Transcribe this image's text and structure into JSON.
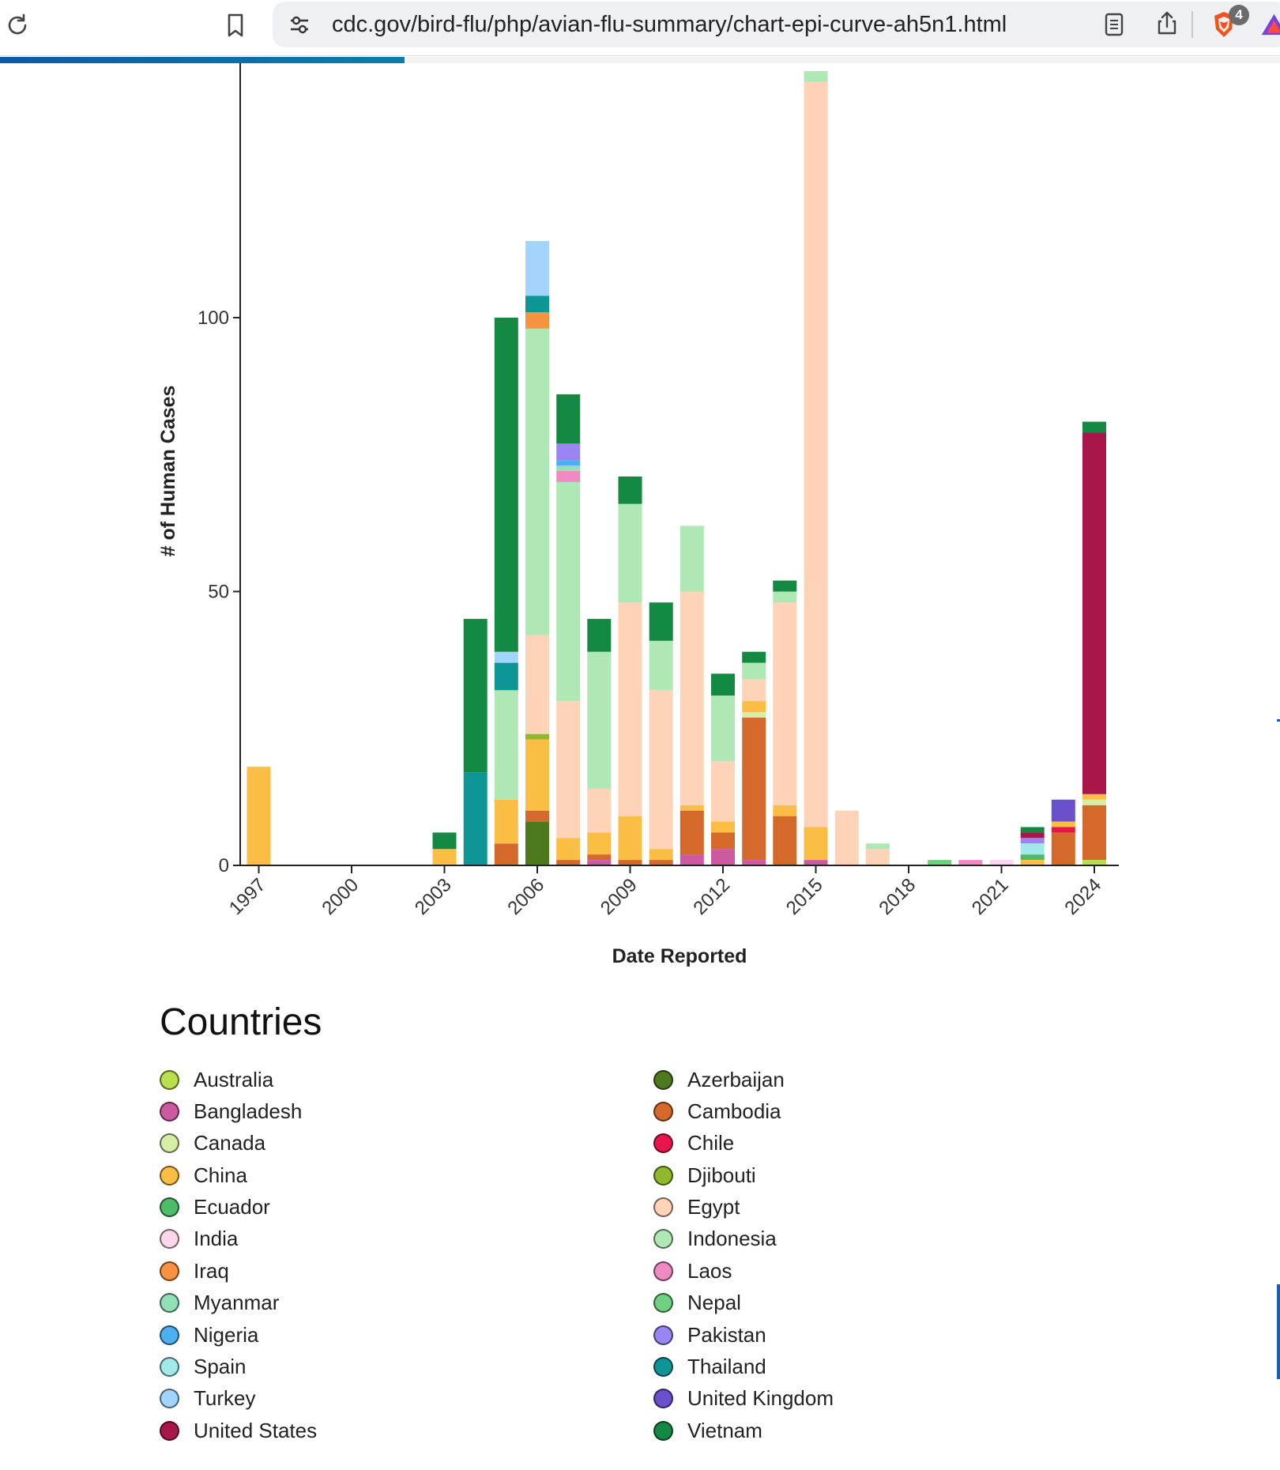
{
  "browser": {
    "url": "cdc.gov/bird-flu/php/avian-flu-summary/chart-epi-curve-ah5n1.html",
    "tab_count": "4",
    "icons": [
      "reload-icon",
      "bookmark-icon",
      "site-settings-icon",
      "reader-mode-icon",
      "share-icon",
      "brave-shields-icon",
      "brave-rewards-icon"
    ]
  },
  "colors": {
    "Australia": "#b8e04a",
    "Azerbaijan": "#4d7a1c",
    "Bangladesh": "#cc5aa0",
    "Cambodia": "#d4692b",
    "Canada": "#d8eda6",
    "Chile": "#e8154a",
    "China": "#f9be43",
    "Djibouti": "#8fb82c",
    "Ecuador": "#4cbc6a",
    "Egypt": "#fed3b8",
    "India": "#fcd6ec",
    "Indonesia": "#afe8b5",
    "Iraq": "#f79340",
    "Laos": "#f08ac4",
    "Myanmar": "#93e0b7",
    "Nepal": "#6fd17f",
    "Nigeria": "#4daef2",
    "Pakistan": "#9b85f2",
    "Spain": "#a2e9ea",
    "Thailand": "#0e9696",
    "Turkey": "#a3d4fb",
    "United Kingdom": "#6a50cc",
    "United States": "#a8164a",
    "Vietnam": "#138943"
  },
  "chart_data": {
    "type": "bar",
    "stacked": true,
    "xlabel": "Date Reported",
    "ylabel": "# of Human Cases",
    "x_ticks": [
      "1997",
      "2000",
      "2003",
      "2006",
      "2009",
      "2012",
      "2015",
      "2018",
      "2021",
      "2024"
    ],
    "y_ticks": [
      0,
      50,
      100
    ],
    "ylim": [
      0,
      145
    ],
    "grid": false,
    "categories": [
      "1997",
      "2003",
      "2004",
      "2005",
      "2006",
      "2007",
      "2008",
      "2009",
      "2010",
      "2011",
      "2012",
      "2013",
      "2014",
      "2015",
      "2016",
      "2017",
      "2019",
      "2020",
      "2021",
      "2022",
      "2023",
      "2024"
    ],
    "stacks": [
      {
        "year": "1997",
        "segments": [
          [
            "China",
            18
          ]
        ]
      },
      {
        "year": "2003",
        "segments": [
          [
            "China",
            3
          ],
          [
            "Vietnam",
            3
          ]
        ]
      },
      {
        "year": "2004",
        "segments": [
          [
            "Thailand",
            17
          ],
          [
            "Vietnam",
            28
          ]
        ]
      },
      {
        "year": "2005",
        "segments": [
          [
            "Cambodia",
            4
          ],
          [
            "China",
            8
          ],
          [
            "Indonesia",
            20
          ],
          [
            "Thailand",
            5
          ],
          [
            "Turkey",
            2
          ],
          [
            "Vietnam",
            61
          ]
        ]
      },
      {
        "year": "2006",
        "segments": [
          [
            "Azerbaijan",
            8
          ],
          [
            "Cambodia",
            2
          ],
          [
            "China",
            13
          ],
          [
            "Djibouti",
            1
          ],
          [
            "Egypt",
            18
          ],
          [
            "Indonesia",
            56
          ],
          [
            "Iraq",
            3
          ],
          [
            "Thailand",
            3
          ],
          [
            "Turkey",
            10
          ]
        ]
      },
      {
        "year": "2007",
        "segments": [
          [
            "Cambodia",
            1
          ],
          [
            "China",
            4
          ],
          [
            "Egypt",
            25
          ],
          [
            "Indonesia",
            40
          ],
          [
            "Laos",
            2
          ],
          [
            "Myanmar",
            1
          ],
          [
            "Nigeria",
            1
          ],
          [
            "Pakistan",
            3
          ],
          [
            "Vietnam",
            9
          ]
        ]
      },
      {
        "year": "2008",
        "segments": [
          [
            "Bangladesh",
            1
          ],
          [
            "Cambodia",
            1
          ],
          [
            "China",
            4
          ],
          [
            "Egypt",
            8
          ],
          [
            "Indonesia",
            25
          ],
          [
            "Vietnam",
            6
          ]
        ]
      },
      {
        "year": "2009",
        "segments": [
          [
            "Cambodia",
            1
          ],
          [
            "China",
            8
          ],
          [
            "Egypt",
            39
          ],
          [
            "Indonesia",
            18
          ],
          [
            "Vietnam",
            5
          ]
        ]
      },
      {
        "year": "2010",
        "segments": [
          [
            "Cambodia",
            1
          ],
          [
            "China",
            2
          ],
          [
            "Egypt",
            29
          ],
          [
            "Indonesia",
            9
          ],
          [
            "Vietnam",
            7
          ]
        ]
      },
      {
        "year": "2011",
        "segments": [
          [
            "Bangladesh",
            2
          ],
          [
            "Cambodia",
            8
          ],
          [
            "China",
            1
          ],
          [
            "Egypt",
            39
          ],
          [
            "Indonesia",
            12
          ]
        ]
      },
      {
        "year": "2012",
        "segments": [
          [
            "Bangladesh",
            3
          ],
          [
            "Cambodia",
            3
          ],
          [
            "China",
            2
          ],
          [
            "Egypt",
            11
          ],
          [
            "Indonesia",
            12
          ],
          [
            "Vietnam",
            4
          ]
        ]
      },
      {
        "year": "2013",
        "segments": [
          [
            "Bangladesh",
            1
          ],
          [
            "Cambodia",
            26
          ],
          [
            "Canada",
            1
          ],
          [
            "China",
            2
          ],
          [
            "Egypt",
            4
          ],
          [
            "Indonesia",
            3
          ],
          [
            "Vietnam",
            2
          ]
        ]
      },
      {
        "year": "2014",
        "segments": [
          [
            "Cambodia",
            9
          ],
          [
            "China",
            2
          ],
          [
            "Egypt",
            37
          ],
          [
            "Indonesia",
            2
          ],
          [
            "Vietnam",
            2
          ]
        ]
      },
      {
        "year": "2015",
        "segments": [
          [
            "Bangladesh",
            1
          ],
          [
            "China",
            6
          ],
          [
            "Egypt",
            136
          ],
          [
            "Indonesia",
            2
          ]
        ]
      },
      {
        "year": "2016",
        "segments": [
          [
            "Egypt",
            10
          ]
        ]
      },
      {
        "year": "2017",
        "segments": [
          [
            "Egypt",
            3
          ],
          [
            "Indonesia",
            1
          ]
        ]
      },
      {
        "year": "2019",
        "segments": [
          [
            "Nepal",
            1
          ]
        ]
      },
      {
        "year": "2020",
        "segments": [
          [
            "Laos",
            1
          ]
        ]
      },
      {
        "year": "2021",
        "segments": [
          [
            "India",
            1
          ]
        ]
      },
      {
        "year": "2022",
        "segments": [
          [
            "China",
            1
          ],
          [
            "Ecuador",
            1
          ],
          [
            "Spain",
            2
          ],
          [
            "Pakistan",
            1
          ],
          [
            "United States",
            1
          ],
          [
            "Vietnam",
            1
          ]
        ]
      },
      {
        "year": "2023",
        "segments": [
          [
            "Cambodia",
            6
          ],
          [
            "Chile",
            1
          ],
          [
            "China",
            1
          ],
          [
            "United Kingdom",
            4
          ]
        ]
      },
      {
        "year": "2024",
        "segments": [
          [
            "Australia",
            1
          ],
          [
            "Cambodia",
            10
          ],
          [
            "Canada",
            1
          ],
          [
            "China",
            1
          ],
          [
            "United States",
            66
          ],
          [
            "Vietnam",
            2
          ]
        ]
      }
    ]
  },
  "legend": {
    "title": "Countries",
    "items": [
      "Australia",
      "Azerbaijan",
      "Bangladesh",
      "Cambodia",
      "Canada",
      "Chile",
      "China",
      "Djibouti",
      "Ecuador",
      "Egypt",
      "India",
      "Indonesia",
      "Iraq",
      "Laos",
      "Myanmar",
      "Nepal",
      "Nigeria",
      "Pakistan",
      "Spain",
      "Thailand",
      "Turkey",
      "United Kingdom",
      "United States",
      "Vietnam"
    ]
  }
}
